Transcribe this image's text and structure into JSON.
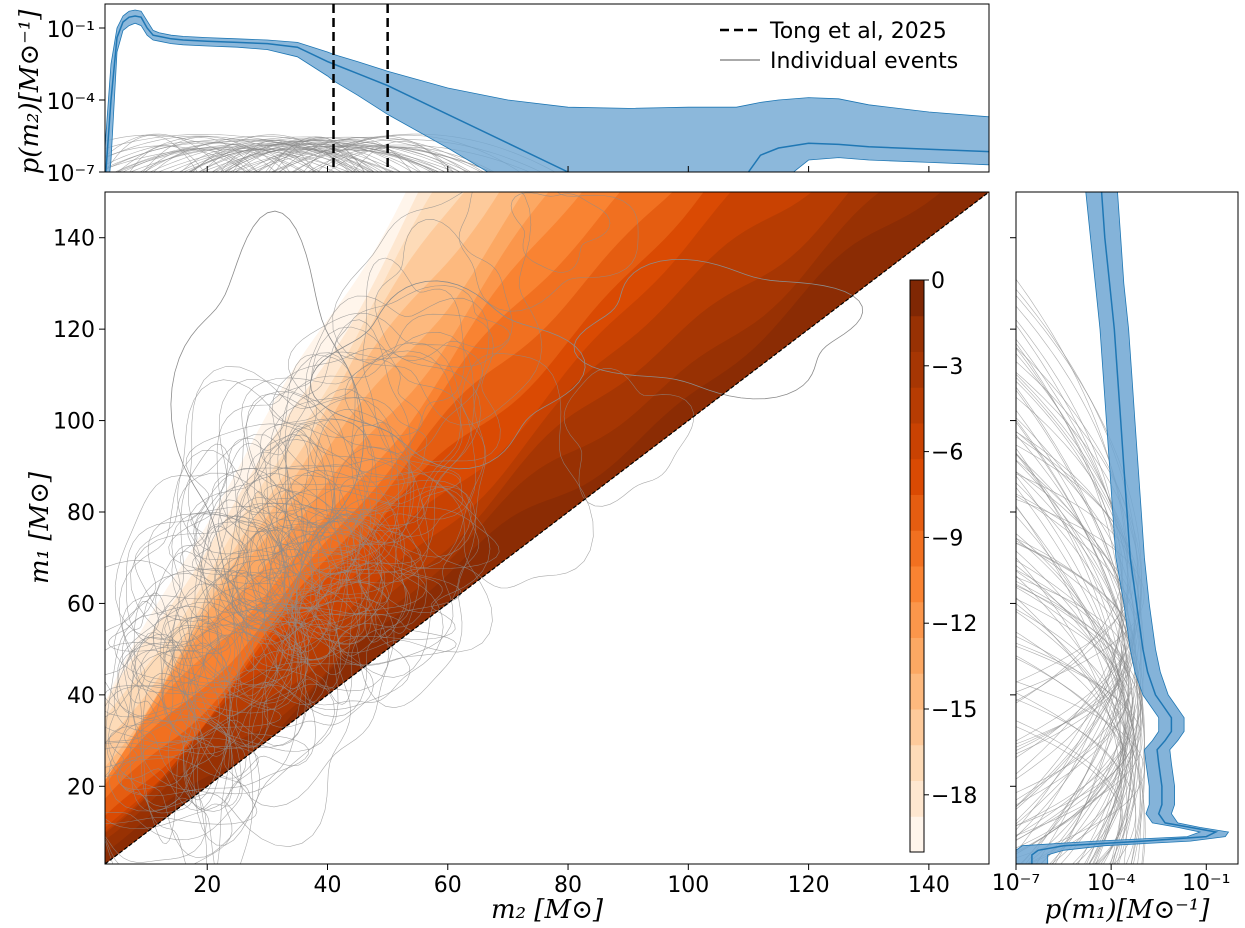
{
  "colors": {
    "band": "#6fa6d2",
    "median": "#1f77b4",
    "events": "#8c8c8c",
    "reference": "#000000",
    "cmap_low": "#fff5eb",
    "cmap_high": "#7f2704"
  },
  "chart_data": [
    {
      "type": "heatmap",
      "panel": "joint",
      "xlabel": "m₂ [M⊙]",
      "ylabel": "m₁ [M⊙]",
      "xlim": [
        3,
        150
      ],
      "ylim": [
        3,
        150
      ],
      "x_ticks": [
        "20",
        "40",
        "60",
        "80",
        "100",
        "120",
        "140"
      ],
      "y_ticks": [
        "20",
        "40",
        "60",
        "80",
        "100",
        "120",
        "140"
      ],
      "colorbar": {
        "range": [
          -20,
          0
        ],
        "ticks": [
          "0",
          "−3",
          "−6",
          "−9",
          "−12",
          "−15",
          "−18"
        ],
        "levels": 16
      },
      "reference_line": "m1 = m2",
      "notes": "log density contours plus individual event contours"
    },
    {
      "type": "area",
      "panel": "top",
      "ylabel": "p(m₂)[M⊙⁻¹]",
      "yscale": "log",
      "ylim_exp": [
        -7,
        0
      ],
      "y_ticks": [
        "10⁻¹",
        "10⁻⁴",
        "10⁻⁷"
      ],
      "x": [
        3,
        4,
        5,
        6,
        7,
        8,
        9,
        10,
        11,
        12,
        14,
        16,
        20,
        25,
        30,
        35,
        40,
        41,
        45,
        50,
        60,
        70,
        80,
        90,
        100,
        105,
        108,
        110,
        112,
        115,
        120,
        125,
        130,
        140,
        150
      ],
      "median_log10": [
        -7.5,
        -4.0,
        -1.4,
        -0.75,
        -0.55,
        -0.5,
        -0.55,
        -1.0,
        -1.3,
        -1.35,
        -1.45,
        -1.5,
        -1.55,
        -1.6,
        -1.65,
        -1.8,
        -2.4,
        -2.5,
        -2.9,
        -3.4,
        -4.6,
        -5.8,
        -7.0,
        -8.0,
        -8.5,
        -8.5,
        -8.0,
        -7.0,
        -6.3,
        -6.0,
        -5.8,
        -5.85,
        -5.95,
        -6.05,
        -6.15
      ],
      "upper_log10": [
        -6.0,
        -2.5,
        -1.0,
        -0.5,
        -0.3,
        -0.25,
        -0.3,
        -0.7,
        -1.1,
        -1.2,
        -1.3,
        -1.35,
        -1.4,
        -1.45,
        -1.5,
        -1.6,
        -2.0,
        -2.1,
        -2.4,
        -2.8,
        -3.5,
        -4.0,
        -4.3,
        -4.35,
        -4.3,
        -4.3,
        -4.3,
        -4.2,
        -4.1,
        -4.0,
        -3.9,
        -3.95,
        -4.2,
        -4.5,
        -4.7
      ],
      "lower_log10": [
        -9,
        -6.5,
        -2.0,
        -1.1,
        -0.9,
        -0.8,
        -0.9,
        -1.3,
        -1.5,
        -1.55,
        -1.65,
        -1.7,
        -1.75,
        -1.8,
        -1.9,
        -2.2,
        -3.0,
        -3.2,
        -3.8,
        -4.6,
        -6.0,
        -7.5,
        -9,
        -9,
        -9,
        -9,
        -9,
        -9,
        -8.5,
        -7.5,
        -6.5,
        -6.4,
        -6.5,
        -6.6,
        -6.7
      ],
      "reference_lines_x": [
        41,
        50
      ],
      "legend": [
        "Tong et al, 2025",
        "Individual events"
      ]
    },
    {
      "type": "area",
      "panel": "right",
      "xlabel": "p(m₁)[M⊙⁻¹]",
      "xscale": "log",
      "xlim_exp": [
        -7,
        0
      ],
      "x_ticks": [
        "10⁻⁷",
        "10⁻⁴",
        "10⁻¹"
      ],
      "m1": [
        3,
        5,
        6,
        7,
        8,
        9,
        10,
        11,
        12,
        14,
        16,
        20,
        25,
        28,
        30,
        32,
        35,
        38,
        40,
        45,
        50,
        60,
        70,
        80,
        90,
        100,
        110,
        120,
        130,
        140,
        150
      ],
      "median_log10": [
        -6.5,
        -6.5,
        -6.3,
        -5.5,
        -3.0,
        -1.0,
        -0.7,
        -1.5,
        -2.3,
        -2.5,
        -2.4,
        -2.4,
        -2.5,
        -2.55,
        -2.3,
        -2.1,
        -2.1,
        -2.4,
        -2.6,
        -2.85,
        -3.0,
        -3.2,
        -3.4,
        -3.5,
        -3.6,
        -3.7,
        -3.8,
        -3.9,
        -4.05,
        -4.2,
        -4.3
      ],
      "upper_log10": [
        -6.0,
        -6.0,
        -5.5,
        -4.2,
        -1.5,
        -0.4,
        -0.3,
        -1.2,
        -1.9,
        -2.1,
        -2.0,
        -2.0,
        -2.1,
        -2.15,
        -1.9,
        -1.7,
        -1.7,
        -2.0,
        -2.2,
        -2.45,
        -2.6,
        -2.8,
        -2.95,
        -3.05,
        -3.15,
        -3.25,
        -3.35,
        -3.45,
        -3.6,
        -3.7,
        -3.8
      ],
      "lower_log10": [
        -7.0,
        -7.0,
        -7.0,
        -6.8,
        -4.5,
        -1.6,
        -1.2,
        -1.9,
        -2.7,
        -2.9,
        -2.8,
        -2.8,
        -2.9,
        -2.95,
        -2.7,
        -2.5,
        -2.5,
        -2.8,
        -3.0,
        -3.25,
        -3.4,
        -3.6,
        -3.85,
        -3.95,
        -4.05,
        -4.15,
        -4.25,
        -4.35,
        -4.5,
        -4.65,
        -4.8
      ]
    }
  ]
}
